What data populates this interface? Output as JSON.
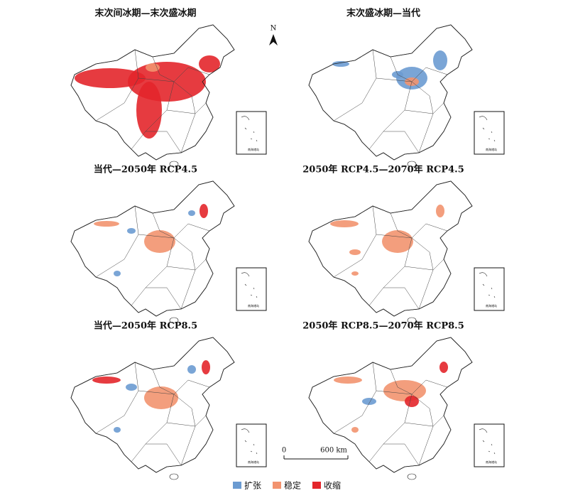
{
  "panels": [
    {
      "title": "末次间冰期—末次盛冰期"
    },
    {
      "title": "末次盛冰期—当代"
    },
    {
      "title": "当代—2050年 RCP4.5"
    },
    {
      "title": "2050年 RCP4.5—2070年 RCP4.5"
    },
    {
      "title": "当代—2050年 RCP8.5"
    },
    {
      "title": "2050年 RCP8.5—2070年 RCP8.5"
    }
  ],
  "north_arrow": "N",
  "scale_bar": {
    "start": "0",
    "end": "600 km"
  },
  "inset_label": "南海诸岛",
  "legend": [
    {
      "label": "扩张",
      "color": "#6b9bd1"
    },
    {
      "label": "稳定",
      "color": "#f2936f"
    },
    {
      "label": "收缩",
      "color": "#e3262b"
    }
  ]
}
